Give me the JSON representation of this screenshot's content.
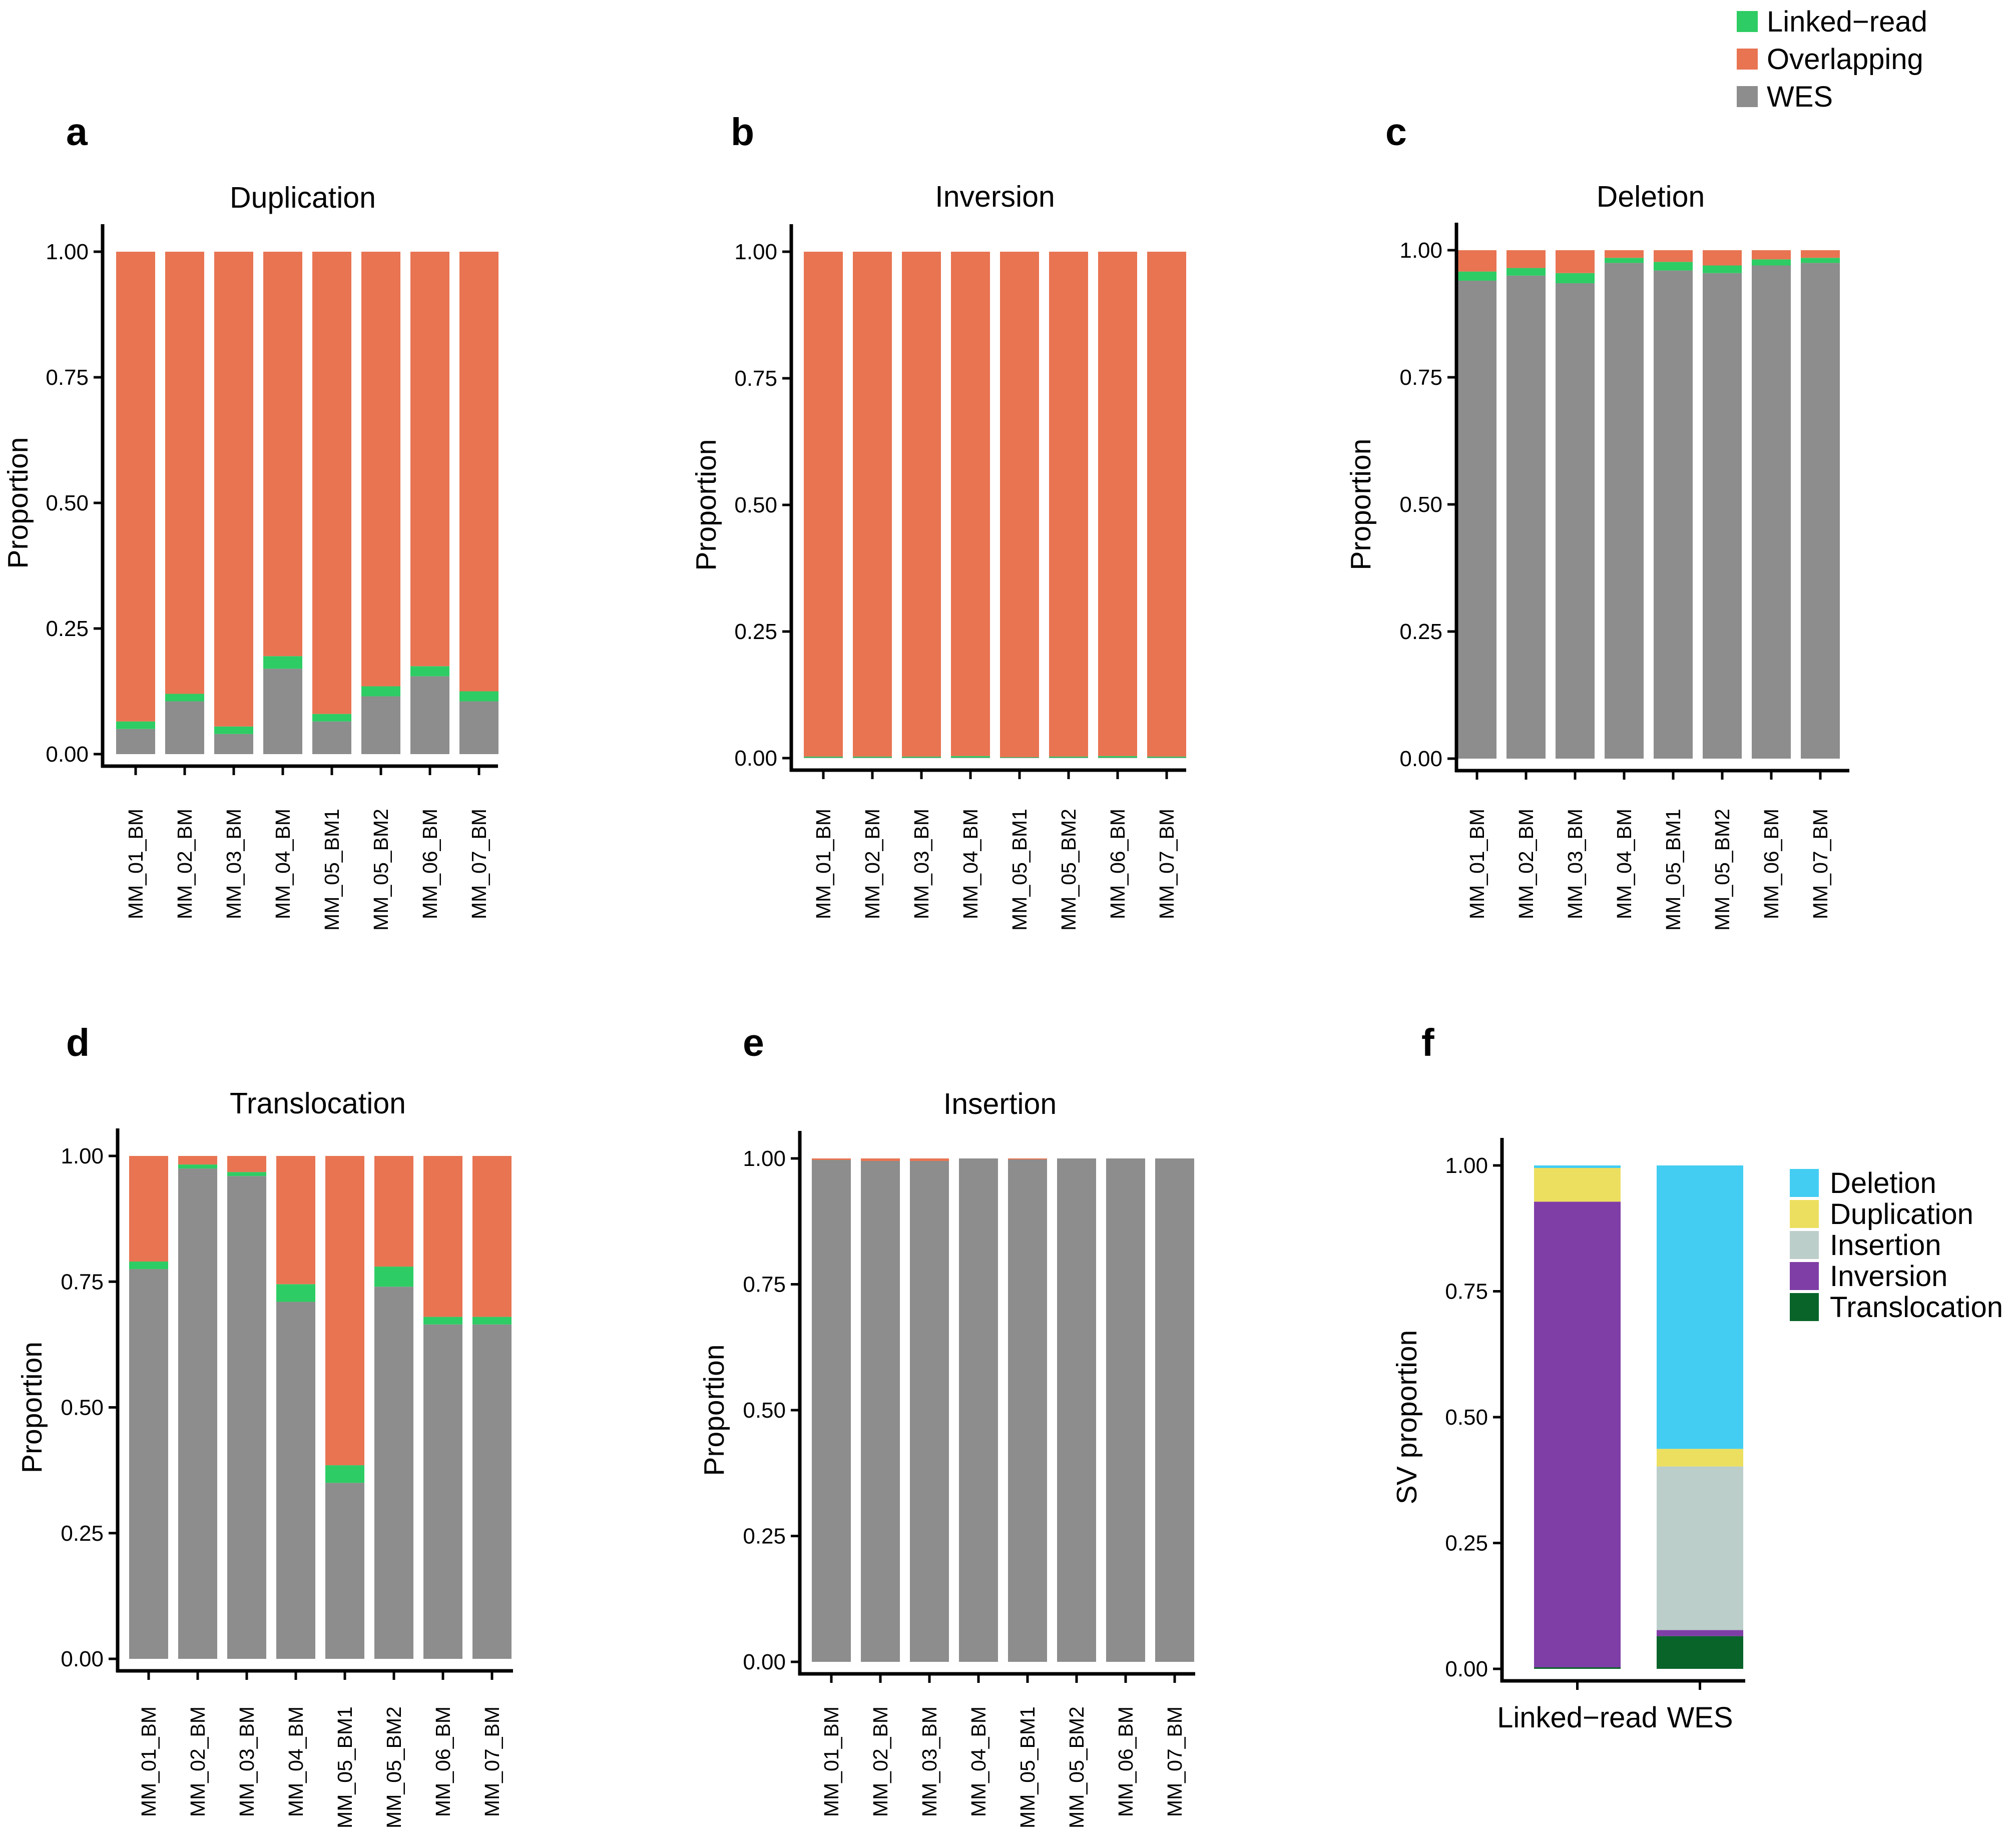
{
  "colors": {
    "linked_read": "#2ecc64",
    "overlapping": "#e87452",
    "wes": "#8c8d8c",
    "deletion": "#43cdf2",
    "duplication": "#ecdf60",
    "insertion": "#bcceca",
    "inversion": "#7f3ea6",
    "translocation": "#09642a"
  },
  "legend": {
    "items": [
      {
        "label": "Linked−read",
        "color": "#2ecc64"
      },
      {
        "label": "Overlapping",
        "color": "#e87452"
      },
      {
        "label": "WES",
        "color": "#8c8d8c"
      }
    ]
  },
  "chart_data": [
    {
      "panel": "a",
      "type": "bar",
      "stacked": true,
      "title": "Duplication",
      "ylabel": "Proportion",
      "xlabel": "",
      "ylim": [
        0,
        1
      ],
      "yticks": [
        "0.00",
        "0.25",
        "0.50",
        "0.75",
        "1.00"
      ],
      "categories": [
        "MM_01_BM",
        "MM_02_BM",
        "MM_03_BM",
        "MM_04_BM",
        "MM_05_BM1",
        "MM_05_BM2",
        "MM_06_BM",
        "MM_07_BM"
      ],
      "series": [
        {
          "name": "WES",
          "values": [
            0.05,
            0.105,
            0.04,
            0.17,
            0.065,
            0.115,
            0.155,
            0.105
          ]
        },
        {
          "name": "Linked-read",
          "values": [
            0.015,
            0.015,
            0.015,
            0.025,
            0.015,
            0.02,
            0.02,
            0.02
          ]
        },
        {
          "name": "Overlapping",
          "values": [
            0.935,
            0.88,
            0.945,
            0.805,
            0.92,
            0.865,
            0.825,
            0.875
          ]
        }
      ]
    },
    {
      "panel": "b",
      "type": "bar",
      "stacked": true,
      "title": "Inversion",
      "ylabel": "Proportion",
      "xlabel": "",
      "ylim": [
        0,
        1
      ],
      "yticks": [
        "0.00",
        "0.25",
        "0.50",
        "0.75",
        "1.00"
      ],
      "categories": [
        "MM_01_BM",
        "MM_02_BM",
        "MM_03_BM",
        "MM_04_BM",
        "MM_05_BM1",
        "MM_05_BM2",
        "MM_06_BM",
        "MM_07_BM"
      ],
      "series": [
        {
          "name": "WES",
          "values": [
            0.001,
            0.001,
            0.001,
            0.001,
            0.001,
            0.001,
            0.001,
            0.001
          ]
        },
        {
          "name": "Linked-read",
          "values": [
            0.002,
            0.002,
            0.002,
            0.003,
            0.001,
            0.002,
            0.003,
            0.002
          ]
        },
        {
          "name": "Overlapping",
          "values": [
            0.997,
            0.997,
            0.997,
            0.996,
            0.998,
            0.997,
            0.996,
            0.997
          ]
        }
      ]
    },
    {
      "panel": "c",
      "type": "bar",
      "stacked": true,
      "title": "Deletion",
      "ylabel": "Proportion",
      "xlabel": "",
      "ylim": [
        0,
        1
      ],
      "yticks": [
        "0.00",
        "0.25",
        "0.50",
        "0.75",
        "1.00"
      ],
      "categories": [
        "MM_01_BM",
        "MM_02_BM",
        "MM_03_BM",
        "MM_04_BM",
        "MM_05_BM1",
        "MM_05_BM2",
        "MM_06_BM",
        "MM_07_BM"
      ],
      "series": [
        {
          "name": "WES",
          "values": [
            0.94,
            0.95,
            0.935,
            0.975,
            0.96,
            0.955,
            0.97,
            0.975
          ]
        },
        {
          "name": "Linked-read",
          "values": [
            0.018,
            0.015,
            0.02,
            0.01,
            0.017,
            0.015,
            0.012,
            0.01
          ]
        },
        {
          "name": "Overlapping",
          "values": [
            0.042,
            0.035,
            0.045,
            0.015,
            0.023,
            0.03,
            0.018,
            0.015
          ]
        }
      ]
    },
    {
      "panel": "d",
      "type": "bar",
      "stacked": true,
      "title": "Translocation",
      "ylabel": "Proportion",
      "xlabel": "",
      "ylim": [
        0,
        1
      ],
      "yticks": [
        "0.00",
        "0.25",
        "0.50",
        "0.75",
        "1.00"
      ],
      "categories": [
        "MM_01_BM",
        "MM_02_BM",
        "MM_03_BM",
        "MM_04_BM",
        "MM_05_BM1",
        "MM_05_BM2",
        "MM_06_BM",
        "MM_07_BM"
      ],
      "series": [
        {
          "name": "WES",
          "values": [
            0.775,
            0.975,
            0.96,
            0.71,
            0.35,
            0.74,
            0.665,
            0.665
          ]
        },
        {
          "name": "Linked-read",
          "values": [
            0.015,
            0.008,
            0.008,
            0.035,
            0.035,
            0.04,
            0.015,
            0.015
          ]
        },
        {
          "name": "Overlapping",
          "values": [
            0.21,
            0.017,
            0.032,
            0.255,
            0.615,
            0.22,
            0.32,
            0.32
          ]
        }
      ]
    },
    {
      "panel": "e",
      "type": "bar",
      "stacked": true,
      "title": "Insertion",
      "ylabel": "Proportion",
      "xlabel": "",
      "ylim": [
        0,
        1
      ],
      "yticks": [
        "0.00",
        "0.25",
        "0.50",
        "0.75",
        "1.00"
      ],
      "categories": [
        "MM_01_BM",
        "MM_02_BM",
        "MM_03_BM",
        "MM_04_BM",
        "MM_05_BM1",
        "MM_05_BM2",
        "MM_06_BM",
        "MM_07_BM"
      ],
      "series": [
        {
          "name": "WES",
          "values": [
            0.997,
            0.995,
            0.995,
            1.0,
            0.998,
            1.0,
            1.0,
            1.0
          ]
        },
        {
          "name": "Linked-read",
          "values": [
            0.0,
            0.0,
            0.0,
            0.0,
            0.0,
            0.0,
            0.0,
            0.0
          ]
        },
        {
          "name": "Overlapping",
          "values": [
            0.003,
            0.005,
            0.005,
            0.0,
            0.002,
            0.0,
            0.0,
            0.0
          ]
        }
      ]
    },
    {
      "panel": "f",
      "type": "bar",
      "stacked": true,
      "title": "",
      "ylabel": "SV proportion",
      "xlabel": "",
      "ylim": [
        0,
        1
      ],
      "yticks": [
        "0.00",
        "0.25",
        "0.50",
        "0.75",
        "1.00"
      ],
      "categories": [
        "Linked−read",
        "WES"
      ],
      "series": [
        {
          "name": "Translocation",
          "values": [
            0.003,
            0.065
          ]
        },
        {
          "name": "Inversion",
          "values": [
            0.925,
            0.012
          ]
        },
        {
          "name": "Insertion",
          "values": [
            0.0,
            0.325
          ]
        },
        {
          "name": "Duplication",
          "values": [
            0.067,
            0.035
          ]
        },
        {
          "name": "Deletion",
          "values": [
            0.005,
            0.563
          ]
        }
      ],
      "legend": [
        "Deletion",
        "Duplication",
        "Insertion",
        "Inversion",
        "Translocation"
      ]
    }
  ]
}
